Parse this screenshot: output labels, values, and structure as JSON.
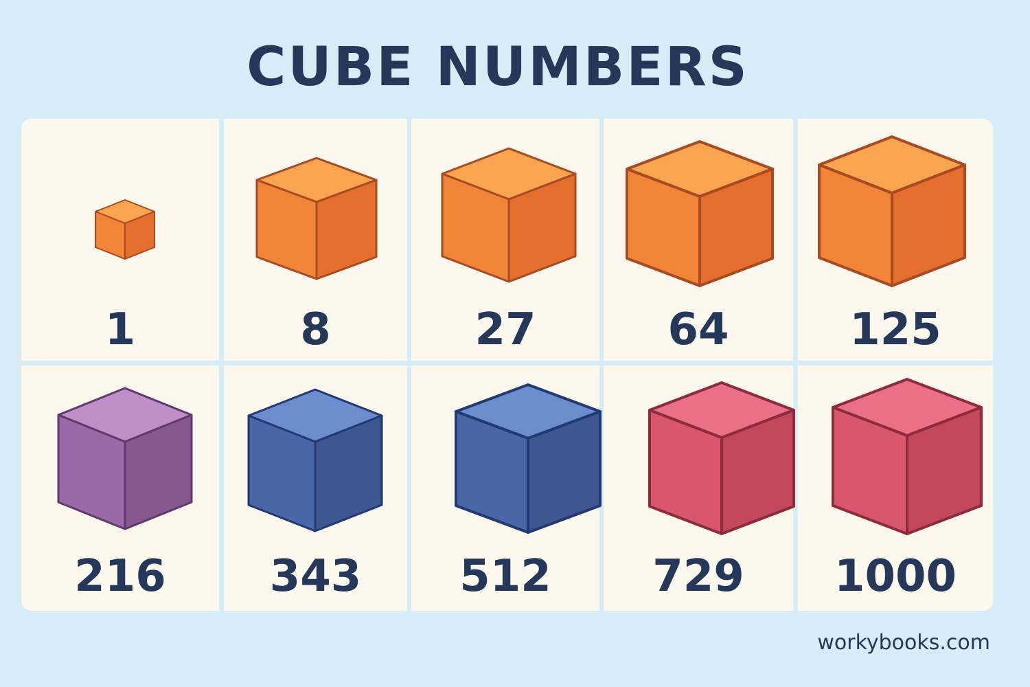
{
  "title": "CUBE NUMBERS",
  "footer": "workybooks.com",
  "cubes": [
    {
      "value": "1",
      "color": "orange"
    },
    {
      "value": "8",
      "color": "orange"
    },
    {
      "value": "27",
      "color": "orange"
    },
    {
      "value": "64",
      "color": "orange"
    },
    {
      "value": "125",
      "color": "orange"
    },
    {
      "value": "216",
      "color": "purple"
    },
    {
      "value": "343",
      "color": "blue"
    },
    {
      "value": "512",
      "color": "blue"
    },
    {
      "value": "729",
      "color": "red"
    },
    {
      "value": "1000",
      "color": "red"
    }
  ],
  "palette": {
    "orange": {
      "top": "#f9a44f",
      "left": "#f08437",
      "right": "#e46e2e",
      "stroke": "#a84a22"
    },
    "purple": {
      "top": "#c08fc8",
      "left": "#9a6aa8",
      "right": "#86588f",
      "stroke": "#5e3b6c"
    },
    "blue": {
      "top": "#6b8ccd",
      "left": "#4866a8",
      "right": "#3f5791",
      "stroke": "#223a72"
    },
    "red": {
      "top": "#ea7088",
      "left": "#d8576e",
      "right": "#c3475d",
      "stroke": "#8e2b3d"
    }
  }
}
